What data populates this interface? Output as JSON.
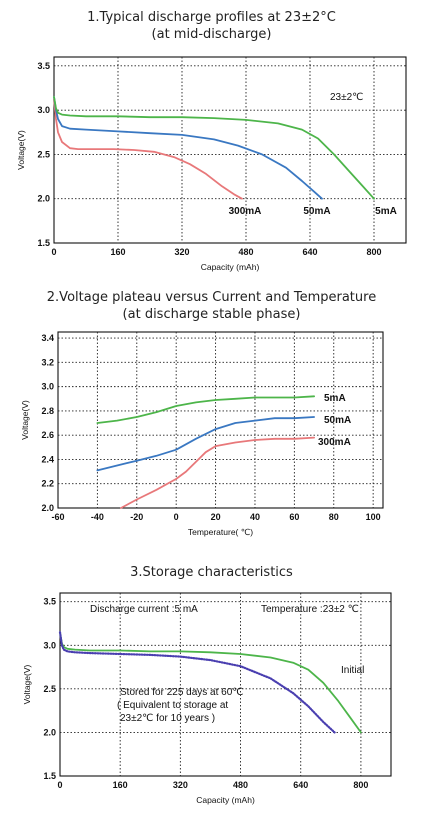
{
  "chart_data": [
    {
      "type": "line",
      "title": "1.Typical discharge profiles at 23±2°C",
      "subtitle": "(at mid-discharge)",
      "xlabel": "Capacity (mAh)",
      "ylabel": "Voltage(V)",
      "xlim": [
        0,
        880
      ],
      "ylim": [
        1.5,
        3.6
      ],
      "xticks": [
        0,
        160,
        320,
        480,
        640,
        800
      ],
      "yticks": [
        1.5,
        2.0,
        2.5,
        3.0,
        3.5
      ],
      "grid": true,
      "annotation": "23±2℃",
      "series": [
        {
          "name": "300mA",
          "color": "#e8787a",
          "x": [
            0,
            5,
            10,
            20,
            40,
            60,
            100,
            150,
            200,
            250,
            300,
            340,
            380,
            420,
            450,
            470
          ],
          "y": [
            3.12,
            2.9,
            2.75,
            2.64,
            2.57,
            2.56,
            2.56,
            2.56,
            2.55,
            2.53,
            2.47,
            2.39,
            2.28,
            2.14,
            2.05,
            2.0
          ]
        },
        {
          "name": "50mA",
          "color": "#3a78c2",
          "x": [
            0,
            5,
            10,
            20,
            40,
            80,
            160,
            240,
            320,
            400,
            460,
            520,
            580,
            620,
            650,
            670
          ],
          "y": [
            3.15,
            3.0,
            2.9,
            2.82,
            2.79,
            2.78,
            2.76,
            2.74,
            2.72,
            2.67,
            2.6,
            2.5,
            2.35,
            2.2,
            2.08,
            2.0
          ]
        },
        {
          "name": "5mA",
          "color": "#4db54a",
          "x": [
            0,
            5,
            10,
            20,
            40,
            80,
            160,
            240,
            320,
            400,
            480,
            560,
            620,
            660,
            700,
            740,
            770,
            800
          ],
          "y": [
            3.15,
            3.02,
            2.97,
            2.95,
            2.94,
            2.93,
            2.93,
            2.92,
            2.92,
            2.91,
            2.89,
            2.85,
            2.78,
            2.68,
            2.5,
            2.3,
            2.15,
            2.0
          ]
        }
      ]
    },
    {
      "type": "line",
      "title": "2.Voltage plateau versus Current and Temperature",
      "subtitle": "(at discharge stable phase)",
      "xlabel": "Temperature( ℃)",
      "ylabel": "Voltage(V)",
      "xlim": [
        -60,
        105
      ],
      "ylim": [
        2.0,
        3.45
      ],
      "xticks": [
        -60,
        -40,
        -20,
        0,
        20,
        40,
        60,
        80,
        100
      ],
      "yticks": [
        2.0,
        2.2,
        2.4,
        2.6,
        2.8,
        3.0,
        3.2,
        3.4
      ],
      "grid": true,
      "series": [
        {
          "name": "5mA",
          "color": "#4db54a",
          "x": [
            -40,
            -30,
            -20,
            -10,
            0,
            10,
            20,
            30,
            40,
            50,
            60,
            70
          ],
          "y": [
            2.7,
            2.72,
            2.75,
            2.79,
            2.84,
            2.87,
            2.89,
            2.9,
            2.91,
            2.91,
            2.91,
            2.92
          ]
        },
        {
          "name": "50mA",
          "color": "#3a78c2",
          "x": [
            -40,
            -30,
            -20,
            -10,
            0,
            10,
            20,
            30,
            40,
            50,
            60,
            70
          ],
          "y": [
            2.31,
            2.35,
            2.39,
            2.43,
            2.48,
            2.57,
            2.65,
            2.7,
            2.72,
            2.74,
            2.74,
            2.75
          ]
        },
        {
          "name": "300mA",
          "color": "#e8787a",
          "x": [
            -28,
            -20,
            -10,
            0,
            5,
            10,
            15,
            20,
            30,
            40,
            50,
            60,
            70
          ],
          "y": [
            2.0,
            2.07,
            2.15,
            2.24,
            2.3,
            2.38,
            2.46,
            2.51,
            2.54,
            2.56,
            2.57,
            2.57,
            2.58
          ]
        }
      ]
    },
    {
      "type": "line",
      "title": "3.Storage characteristics",
      "xlabel": "Capacity (mAh)",
      "ylabel": "Voltage(V)",
      "xlim": [
        0,
        880
      ],
      "ylim": [
        1.5,
        3.6
      ],
      "xticks": [
        0,
        160,
        320,
        480,
        640,
        800
      ],
      "yticks": [
        1.5,
        2.0,
        2.5,
        3.0,
        3.5
      ],
      "grid": true,
      "annotations": {
        "discharge": "Discharge current  :5 mA",
        "temperature": "Temperature :23±2 ℃",
        "initial": "Initial",
        "stored_line1": "Stored for 225 days at 60℃",
        "stored_line2": "( Equivalent to storage at",
        "stored_line3": "23±2℃ for 10 years  )"
      },
      "series": [
        {
          "name": "Initial",
          "color": "#4db54a",
          "x": [
            0,
            5,
            10,
            20,
            40,
            80,
            160,
            240,
            320,
            400,
            480,
            560,
            620,
            660,
            700,
            740,
            770,
            800
          ],
          "y": [
            3.15,
            3.02,
            2.98,
            2.96,
            2.95,
            2.94,
            2.94,
            2.93,
            2.93,
            2.92,
            2.9,
            2.86,
            2.8,
            2.72,
            2.57,
            2.36,
            2.18,
            2.0
          ]
        },
        {
          "name": "Stored for 225 days at 60℃",
          "color": "#4a3fb0",
          "style": "dotted",
          "x": [
            0,
            5,
            10,
            20,
            40,
            80,
            160,
            240,
            320,
            400,
            480,
            560,
            620,
            660,
            700,
            730
          ],
          "y": [
            3.15,
            3.0,
            2.95,
            2.93,
            2.92,
            2.91,
            2.9,
            2.89,
            2.87,
            2.83,
            2.76,
            2.62,
            2.45,
            2.3,
            2.12,
            2.0
          ]
        }
      ]
    }
  ]
}
